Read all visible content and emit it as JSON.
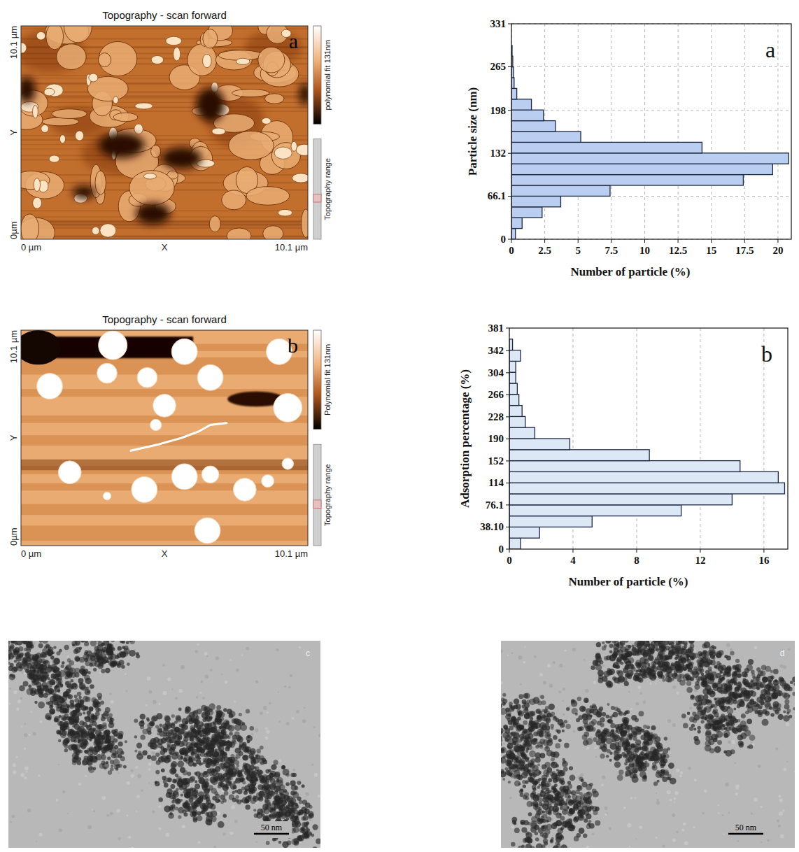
{
  "chart_data": [
    {
      "type": "image",
      "panel": "a",
      "title": "Topography - scan forward",
      "xlabel": "X",
      "ylabel": "Y",
      "xlim": [
        0,
        10.1
      ],
      "ylim": [
        0,
        10.1
      ],
      "xticks": [
        {
          "value": 0,
          "label": "0 µm"
        },
        {
          "value": 10.1,
          "label": "10.1 µm"
        }
      ],
      "yticks": [
        {
          "value": 0,
          "label": "0µm"
        },
        {
          "value": 10.1,
          "label": "10.1 µm"
        }
      ],
      "colorbar_label": "polynomial fit 131nm",
      "range_label": "Topography range"
    },
    {
      "type": "histogram",
      "panel": "a",
      "ylabel": "Particle size (nm)",
      "xlabel": "Number of particle (%)",
      "orientation": "horizontal",
      "color": "#b9cef0",
      "grid": true,
      "bins": [
        0,
        16.55,
        33.1,
        49.65,
        66.2,
        82.75,
        99.3,
        115.85,
        132.4,
        148.95,
        165.5,
        182.05,
        198.6,
        215.15,
        231.7,
        248.25,
        264.8,
        281.35,
        297.9,
        314.45,
        331
      ],
      "values": [
        0.3,
        0.8,
        2.3,
        3.7,
        7.4,
        17.4,
        19.6,
        20.8,
        14.3,
        5.2,
        3.3,
        2.4,
        1.5,
        0.4,
        0.2,
        0.15,
        0.1,
        0.05,
        0,
        0
      ],
      "ylim": [
        0,
        331
      ],
      "yticks": [
        0,
        66.1,
        132,
        198,
        265,
        331
      ],
      "xlim": [
        0,
        21
      ],
      "xticks": [
        0,
        2.5,
        5,
        7.5,
        10,
        12.5,
        15,
        17.5,
        20
      ]
    },
    {
      "type": "image",
      "panel": "b",
      "title": "Topography - scan forward",
      "xlabel": "X",
      "ylabel": "Y",
      "xlim": [
        0,
        10.1
      ],
      "ylim": [
        0,
        10.1
      ],
      "xticks": [
        {
          "value": 0,
          "label": "0 µm"
        },
        {
          "value": 10.1,
          "label": "10.1 µm"
        }
      ],
      "yticks": [
        {
          "value": 0,
          "label": "0µm"
        },
        {
          "value": 10.1,
          "label": "10.1 µm"
        }
      ],
      "colorbar_label": "Polynomial fit 131nm",
      "range_label": "Topography range"
    },
    {
      "type": "histogram",
      "panel": "b",
      "ylabel": "Adsorption percentage (%)",
      "xlabel": "Number of particle (%)",
      "orientation": "horizontal",
      "color": "#dce8f6",
      "grid": "x",
      "bins": [
        0,
        19.05,
        38.1,
        57.15,
        76.2,
        95.25,
        114.3,
        133.35,
        152.4,
        171.45,
        190.5,
        209.55,
        228.6,
        247.65,
        266.7,
        285.75,
        304.8,
        323.85,
        342.9,
        361.95,
        381
      ],
      "values": [
        0.7,
        1.9,
        5.2,
        10.8,
        14,
        17.3,
        16.9,
        14.5,
        8.8,
        3.8,
        1.6,
        1.0,
        0.8,
        0.6,
        0.5,
        0.4,
        0.4,
        0.7,
        0.2,
        0
      ],
      "ylim": [
        0,
        381
      ],
      "yticks": [
        0,
        {
          "value": 38.1,
          "label": "38.10"
        },
        76.1,
        114,
        152,
        190,
        228,
        266,
        304,
        342,
        381
      ],
      "xlim": [
        0,
        17.5
      ],
      "xticks": [
        0,
        4,
        8,
        12,
        16
      ]
    },
    {
      "type": "micrograph",
      "panel": "c",
      "scale_bar": {
        "value": 50,
        "label": "50 nm"
      }
    },
    {
      "type": "micrograph",
      "panel": "d",
      "scale_bar": {
        "value": 50,
        "label": "50 nm"
      }
    }
  ]
}
